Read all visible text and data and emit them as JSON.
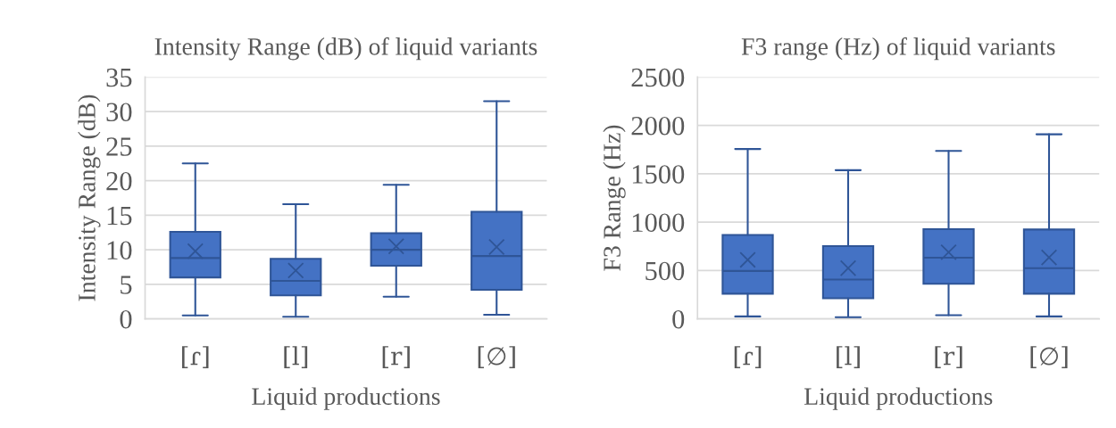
{
  "chart_data": [
    {
      "type": "box",
      "title": "Intensity Range (dB) of liquid variants",
      "xlabel": "Liquid productions",
      "ylabel": "Intensity Range (dB)",
      "categories": [
        "[ɾ]",
        "[l]",
        "[r]",
        "[∅]"
      ],
      "ylim": [
        0,
        35
      ],
      "yticks": [
        0,
        5,
        10,
        15,
        20,
        25,
        30,
        35
      ],
      "grid": "y",
      "series": [
        {
          "color": "#4472c4",
          "boxes": [
            {
              "low": 0.5,
              "q1": 6.0,
              "median": 8.8,
              "q3": 12.6,
              "high": 22.5,
              "mean": 9.8
            },
            {
              "low": 0.3,
              "q1": 3.4,
              "median": 5.5,
              "q3": 8.7,
              "high": 16.6,
              "mean": 7.0
            },
            {
              "low": 3.2,
              "q1": 7.7,
              "median": 10.0,
              "q3": 12.4,
              "high": 19.4,
              "mean": 10.5
            },
            {
              "low": 0.6,
              "q1": 4.2,
              "median": 9.1,
              "q3": 15.5,
              "high": 31.5,
              "mean": 10.4
            }
          ]
        }
      ]
    },
    {
      "type": "box",
      "title": "F3 range (Hz) of liquid variants",
      "xlabel": "Liquid productions",
      "ylabel": "F3 Range (Hz)",
      "categories": [
        "[ɾ]",
        "[l]",
        "[r]",
        "[∅]"
      ],
      "ylim": [
        0,
        2500
      ],
      "yticks": [
        0,
        500,
        1000,
        1500,
        2000,
        2500
      ],
      "grid": "y",
      "series": [
        {
          "color": "#4472c4",
          "boxes": [
            {
              "low": 25,
              "q1": 260,
              "median": 495,
              "q3": 867,
              "high": 1756,
              "mean": 610
            },
            {
              "low": 16,
              "q1": 213,
              "median": 406,
              "q3": 752,
              "high": 1537,
              "mean": 524
            },
            {
              "low": 38,
              "q1": 362,
              "median": 632,
              "q3": 927,
              "high": 1737,
              "mean": 689
            },
            {
              "low": 25,
              "q1": 260,
              "median": 524,
              "q3": 924,
              "high": 1908,
              "mean": 635
            }
          ]
        }
      ]
    }
  ]
}
